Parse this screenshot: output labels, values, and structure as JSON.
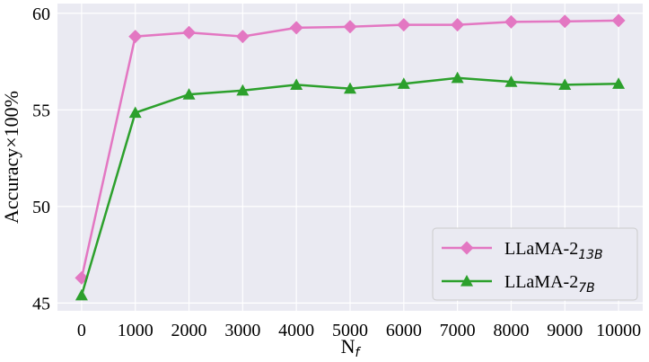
{
  "chart_data": {
    "type": "line",
    "x": [
      0,
      1000,
      2000,
      3000,
      4000,
      5000,
      6000,
      7000,
      8000,
      9000,
      10000
    ],
    "xtick_labels": [
      "0",
      "1000",
      "2000",
      "3000",
      "4000",
      "5000",
      "6000",
      "7000",
      "8000",
      "9000",
      "10000"
    ],
    "yticks": [
      45,
      50,
      55,
      60
    ],
    "ytick_labels": [
      "45",
      "50",
      "55",
      "60"
    ],
    "ylim": [
      44.6,
      60.5
    ],
    "xlabel_main": "N",
    "xlabel_sub": "f",
    "ylabel": "Accuracy×100%",
    "grid": true,
    "background": "#eaeaf2",
    "legend_position": "lower-right",
    "series": [
      {
        "name_main": "LLaMA-2",
        "name_sub": "13B",
        "color": "#e377c2",
        "marker": "diamond",
        "values": [
          46.3,
          58.8,
          59.0,
          58.8,
          59.25,
          59.3,
          59.4,
          59.4,
          59.55,
          59.58,
          59.62
        ]
      },
      {
        "name_main": "LLaMA-2",
        "name_sub": "7B",
        "color": "#2ca02c",
        "marker": "triangle",
        "values": [
          45.4,
          54.85,
          55.8,
          56.0,
          56.3,
          56.1,
          56.35,
          56.65,
          56.45,
          56.3,
          56.35
        ]
      }
    ]
  }
}
